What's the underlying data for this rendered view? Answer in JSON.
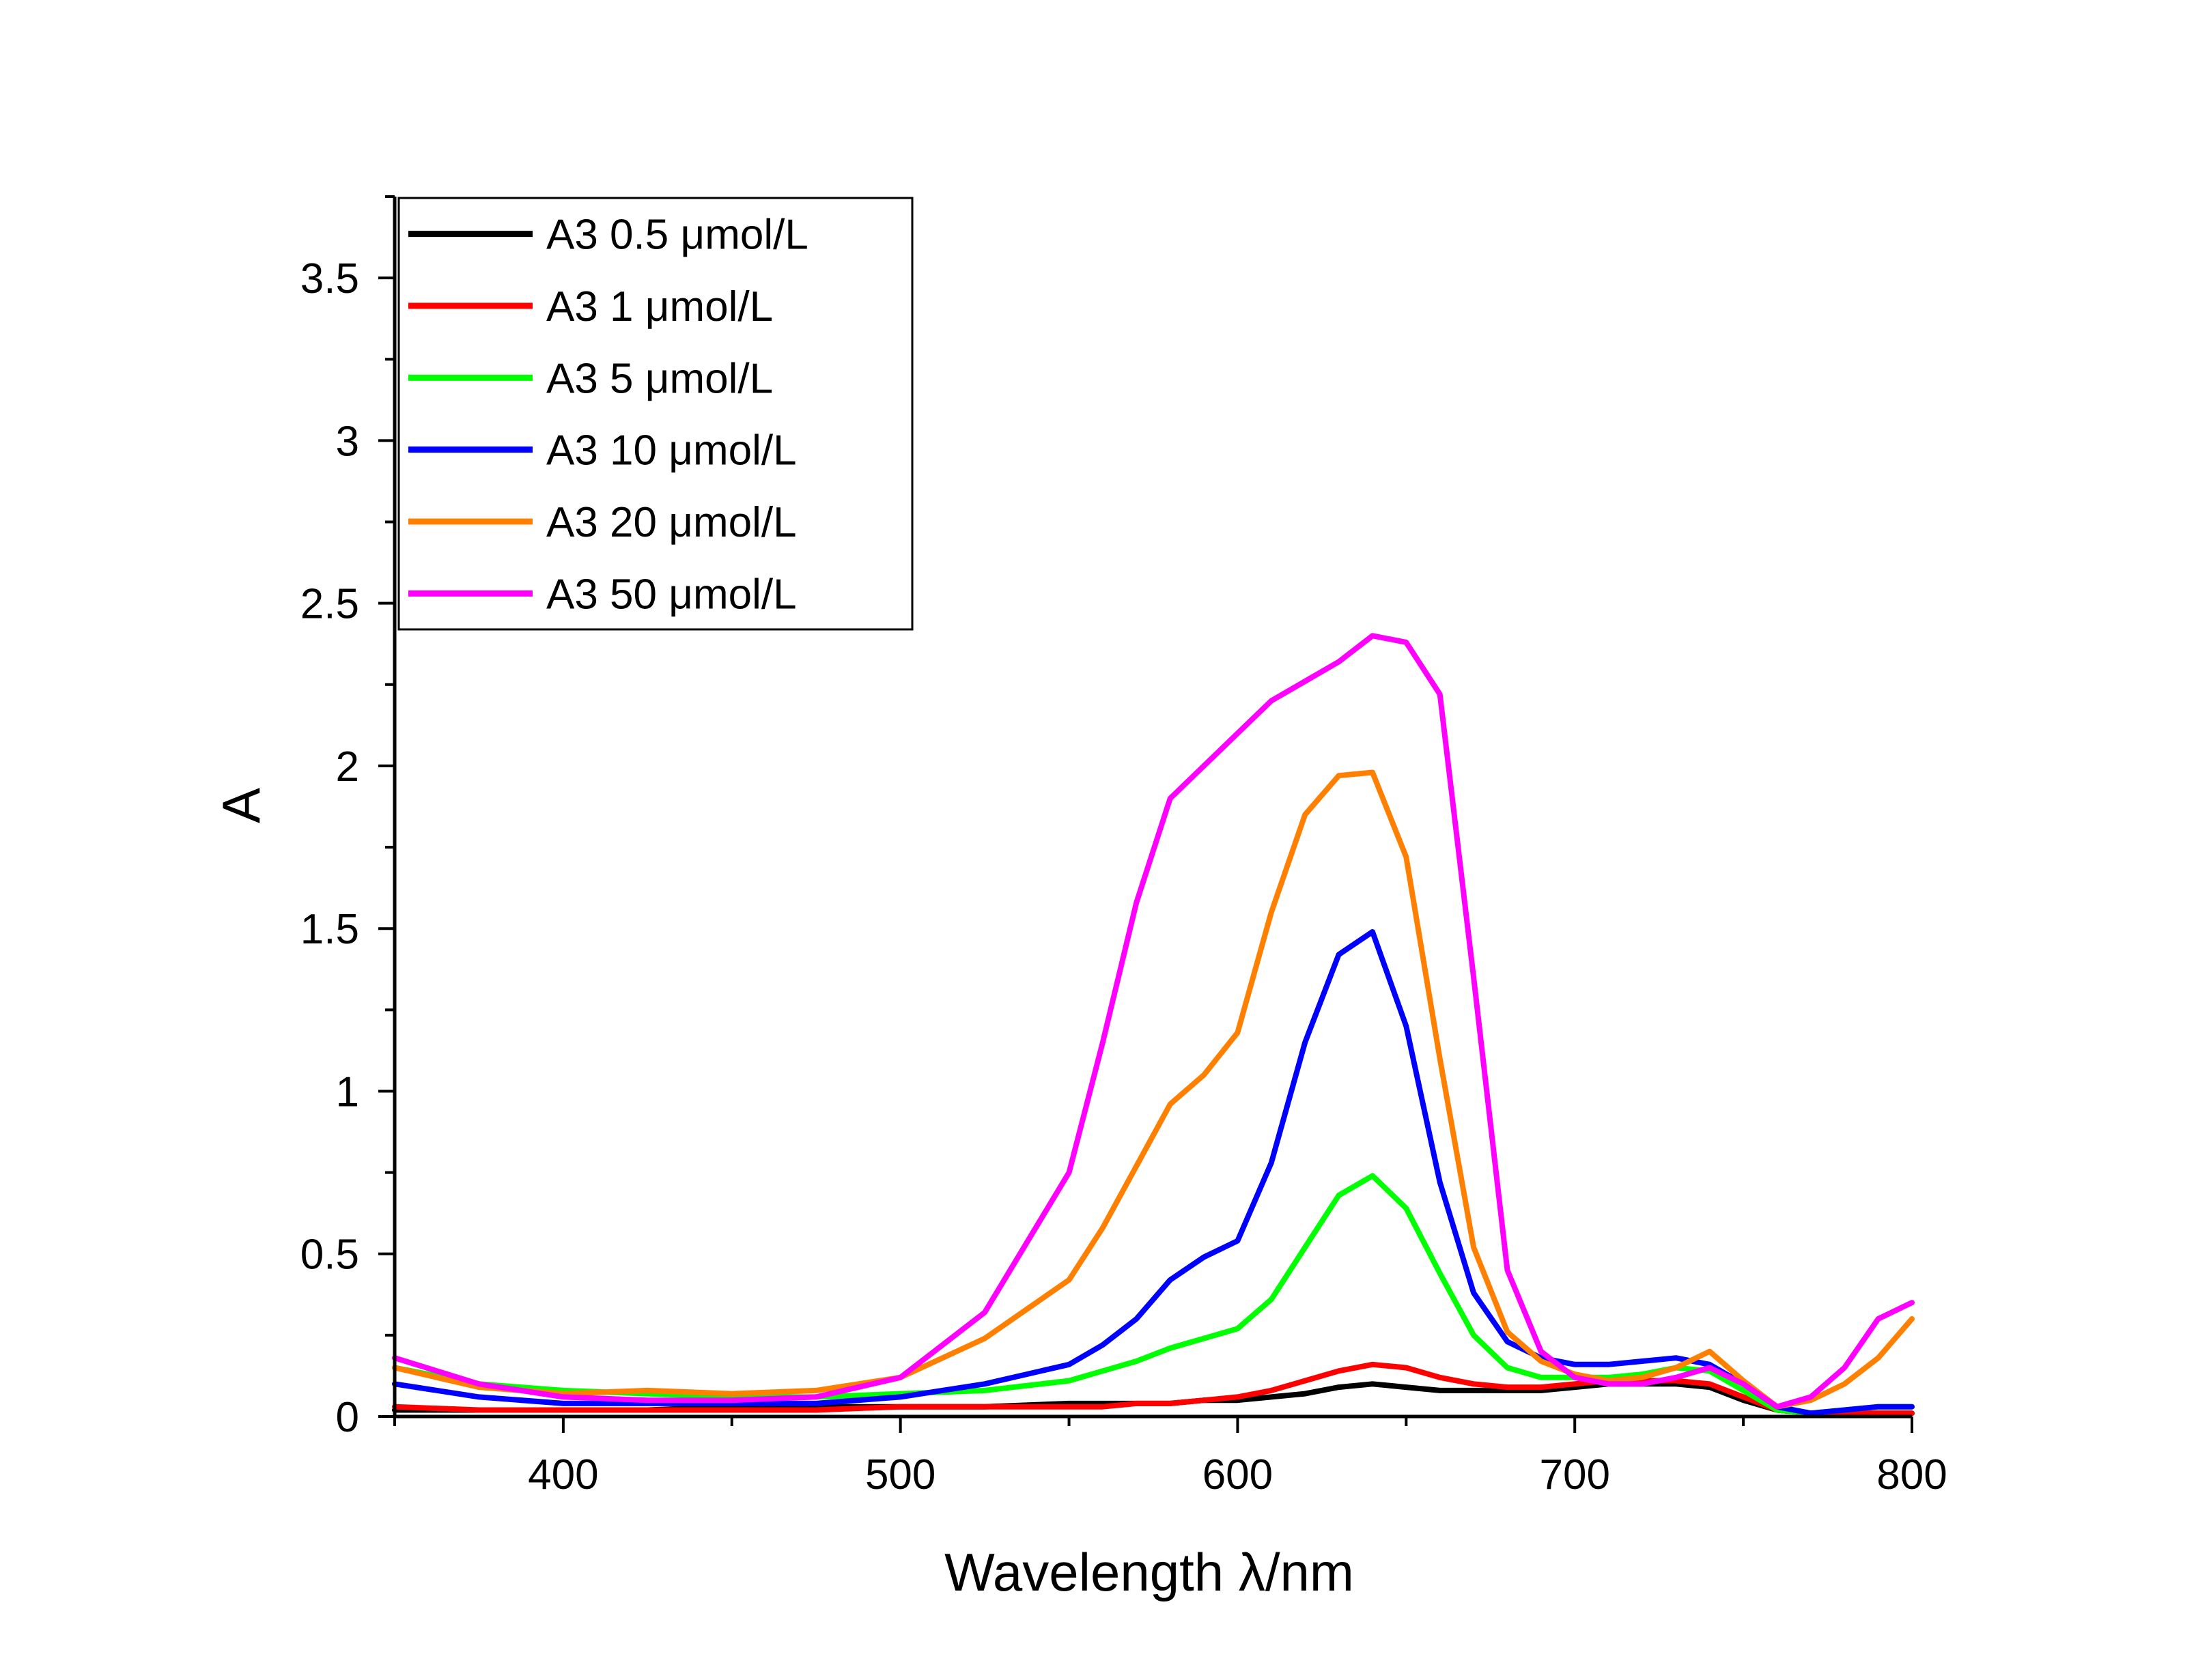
{
  "chart_data": {
    "type": "line",
    "title": "",
    "xlabel": "Wavelength λ/nm",
    "ylabel": "A",
    "xlim": [
      350,
      800
    ],
    "ylim": [
      0,
      3.75
    ],
    "x_ticks": [
      400,
      500,
      600,
      700,
      800
    ],
    "x_tick_labels": [
      "400",
      "500",
      "600",
      "700",
      "800"
    ],
    "y_ticks": [
      0,
      0.5,
      1,
      1.5,
      2,
      2.5,
      3,
      3.5
    ],
    "y_tick_labels": [
      "0",
      "0.5",
      "1",
      "1.5",
      "2",
      "2.5",
      "3",
      "3.5"
    ],
    "grid": false,
    "legend_position": "top-left",
    "x": [
      350,
      375,
      400,
      425,
      450,
      475,
      500,
      525,
      550,
      560,
      570,
      580,
      590,
      600,
      610,
      620,
      630,
      640,
      650,
      660,
      670,
      680,
      690,
      700,
      710,
      720,
      730,
      740,
      750,
      760,
      770,
      780,
      790,
      800
    ],
    "series": [
      {
        "name": "A3 0.5 μmol/L",
        "color": "#000000",
        "values": [
          0.02,
          0.02,
          0.02,
          0.02,
          0.03,
          0.03,
          0.03,
          0.03,
          0.04,
          0.04,
          0.04,
          0.04,
          0.05,
          0.05,
          0.06,
          0.07,
          0.09,
          0.1,
          0.09,
          0.08,
          0.08,
          0.08,
          0.08,
          0.09,
          0.1,
          0.1,
          0.1,
          0.09,
          0.05,
          0.02,
          0.01,
          0.01,
          0.01,
          0.01
        ]
      },
      {
        "name": "A3 1 μmol/L",
        "color": "#ff0000",
        "values": [
          0.03,
          0.02,
          0.02,
          0.02,
          0.02,
          0.02,
          0.03,
          0.03,
          0.03,
          0.03,
          0.04,
          0.04,
          0.05,
          0.06,
          0.08,
          0.11,
          0.14,
          0.16,
          0.15,
          0.12,
          0.1,
          0.09,
          0.09,
          0.1,
          0.11,
          0.11,
          0.11,
          0.1,
          0.06,
          0.02,
          0.01,
          0.01,
          0.01,
          0.01
        ]
      },
      {
        "name": "A3 5 μmol/L",
        "color": "#00ff00",
        "values": [
          0.15,
          0.1,
          0.08,
          0.07,
          0.06,
          0.06,
          0.07,
          0.08,
          0.11,
          0.14,
          0.17,
          0.21,
          0.24,
          0.27,
          0.36,
          0.52,
          0.68,
          0.74,
          0.64,
          0.44,
          0.25,
          0.15,
          0.12,
          0.12,
          0.12,
          0.13,
          0.15,
          0.14,
          0.08,
          0.02,
          0.01,
          0.02,
          0.03,
          0.03
        ]
      },
      {
        "name": "A3 10 μmol/L",
        "color": "#0000ff",
        "values": [
          0.1,
          0.06,
          0.04,
          0.04,
          0.04,
          0.04,
          0.06,
          0.1,
          0.16,
          0.22,
          0.3,
          0.42,
          0.49,
          0.54,
          0.78,
          1.15,
          1.42,
          1.49,
          1.2,
          0.72,
          0.38,
          0.23,
          0.18,
          0.16,
          0.16,
          0.17,
          0.18,
          0.16,
          0.1,
          0.03,
          0.01,
          0.02,
          0.03,
          0.03
        ]
      },
      {
        "name": "A3 20 μmol/L",
        "color": "#ff8000",
        "values": [
          0.15,
          0.09,
          0.07,
          0.08,
          0.07,
          0.08,
          0.12,
          0.24,
          0.42,
          0.58,
          0.77,
          0.96,
          1.05,
          1.18,
          1.55,
          1.85,
          1.97,
          1.98,
          1.72,
          1.1,
          0.52,
          0.26,
          0.17,
          0.13,
          0.11,
          0.12,
          0.15,
          0.2,
          0.11,
          0.03,
          0.05,
          0.1,
          0.18,
          0.3
        ]
      },
      {
        "name": "A3 50 μmol/L",
        "color": "#ff00ff",
        "values": [
          0.18,
          0.1,
          0.06,
          0.05,
          0.05,
          0.06,
          0.12,
          0.32,
          0.75,
          1.15,
          1.58,
          1.9,
          2.0,
          2.1,
          2.2,
          2.26,
          2.32,
          2.4,
          2.38,
          2.22,
          1.35,
          0.45,
          0.2,
          0.12,
          0.1,
          0.1,
          0.12,
          0.15,
          0.1,
          0.03,
          0.06,
          0.15,
          0.3,
          0.35
        ]
      }
    ]
  }
}
